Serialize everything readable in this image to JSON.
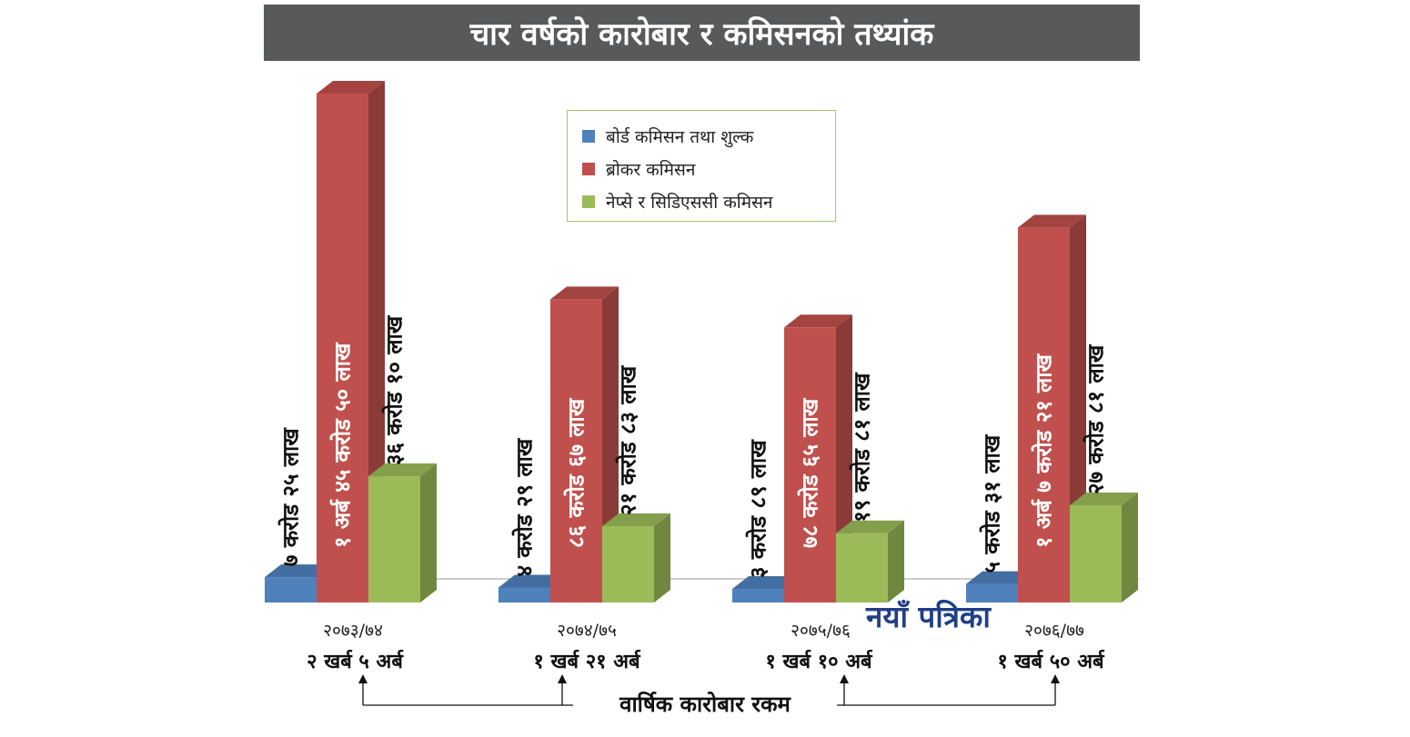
{
  "title": "चार वर्षको कारोबार र कमिसनको तथ्यांक",
  "legend": {
    "items": [
      {
        "label": "बोर्ड कमिसन तथा शुल्क",
        "color": "#4f81bd"
      },
      {
        "label": "ब्रोकर कमिसन",
        "color": "#c0504d"
      },
      {
        "label": "नेप्से र सिडिएससी कमिसन",
        "color": "#9bbb59"
      }
    ]
  },
  "watermark": "नयाँ पत्रिका",
  "footer_label": "वार्षिक कारोबार रकम",
  "chart_data": {
    "type": "bar",
    "categories": [
      "२०७३/७४",
      "२०७४/७५",
      "२०७५/७६",
      "२०७६/७७"
    ],
    "totals": [
      "२ खर्ब ५ अर्ब",
      "१ खर्ब २१ अर्ब",
      "१ खर्ब १० अर्ब",
      "१ खर्ब ५० अर्ब"
    ],
    "unit_note": "values in लाख (1 करोड = 100 लाख, 1 अर्ब = 10000 लाख)",
    "series": [
      {
        "name": "बोर्ड कमिसन तथा शुल्क",
        "color": "#4f81bd",
        "values": [
          725,
          429,
          389,
          531
        ],
        "labels": [
          "७ करोड २५ लाख",
          "४ करोड २९ लाख",
          "३ करोड ८९ लाख",
          "५ करोड ३१ लाख"
        ]
      },
      {
        "name": "ब्रोकर कमिसन",
        "color": "#c0504d",
        "values": [
          14550,
          8667,
          7865,
          10721
        ],
        "labels": [
          "१ अर्ब ४५ करोड ५० लाख",
          "८६ करोड ६७ लाख",
          "७८ करोड ६५ लाख",
          "१ अर्ब ७ करोड २१ लाख"
        ]
      },
      {
        "name": "नेप्से र सिडिएससी कमिसन",
        "color": "#9bbb59",
        "values": [
          3610,
          2183,
          1981,
          2781
        ],
        "labels": [
          "३६ करोड १० लाख",
          "२१ करोड ८३ लाख",
          "१९ करोड ८१ लाख",
          "२७ करोड ८१ लाख"
        ]
      }
    ],
    "xlabel": "",
    "ylabel": "",
    "grid": false,
    "legend_position": "top-center"
  }
}
